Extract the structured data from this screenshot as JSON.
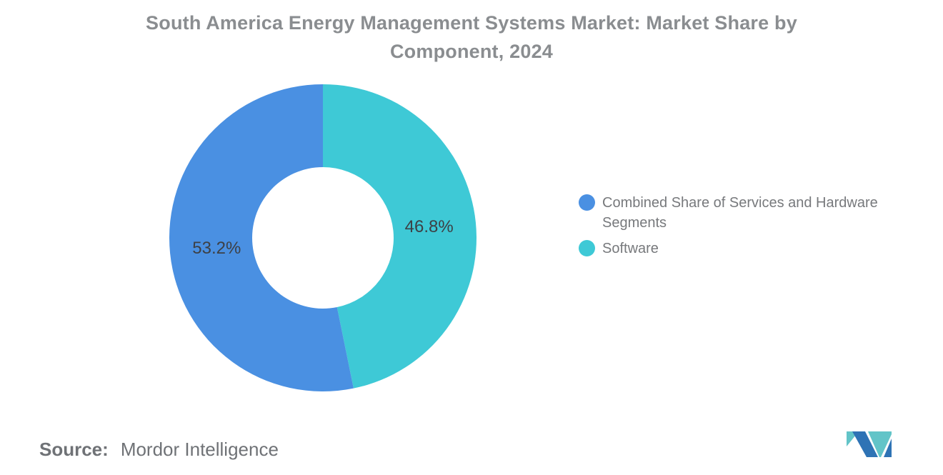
{
  "chart_data": {
    "type": "pie",
    "subtype": "donut",
    "title": "South America Energy Management Systems Market: Market Share by Component, 2024",
    "slices": [
      {
        "label": "Combined Share of Services and Hardware Segments",
        "value": 53.2,
        "display": "53.2%",
        "color": "#4a90e2"
      },
      {
        "label": "Software",
        "value": 46.8,
        "display": "46.8%",
        "color": "#3ec9d6"
      }
    ],
    "draw_order": [
      1,
      0
    ],
    "start": "top",
    "direction": "clockwise",
    "inner_radius_ratio": 0.46,
    "label_radius_ratio": 0.695,
    "legend_position": "right",
    "grid": "off"
  },
  "source": {
    "prefix": "Source:",
    "name": "Mordor Intelligence"
  },
  "logo": {
    "icon": "mordor-intelligence-logo",
    "blue": "#2e73b5",
    "teal": "#62c4c8"
  }
}
